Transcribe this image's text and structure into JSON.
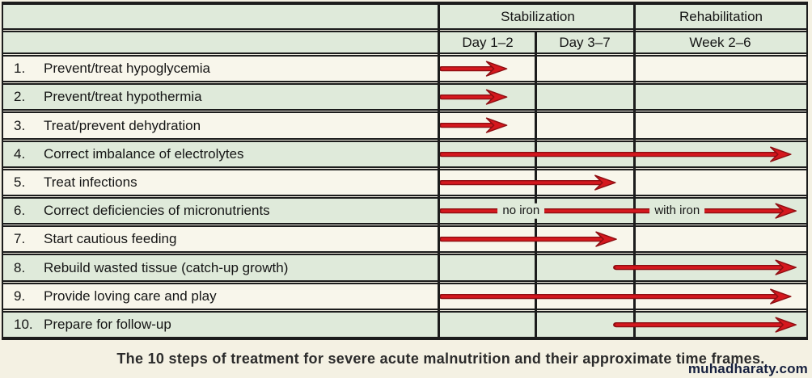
{
  "palette": {
    "row_cream": "#f8f6eb",
    "row_green": "#dfeada",
    "grid_black": "#1c1c1c",
    "arrow_bright": "#d5181e",
    "arrow_dark": "#8e0e12",
    "background": "#f4f1e3",
    "watermark_navy": "#16203f"
  },
  "table": {
    "header": {
      "stabilization": "Stabilization",
      "rehabilitation": "Rehabilitation",
      "day12": "Day 1–2",
      "day37": "Day 3–7",
      "week26": "Week 2–6"
    }
  },
  "caption": "The 10 steps of treatment for severe acute malnutrition and their approximate time frames.",
  "watermark": "muhadharaty.com",
  "chart_data": {
    "type": "table",
    "title": "The 10 steps of treatment for severe acute malnutrition and their approximate time frames.",
    "column_groups": [
      {
        "label": "Stabilization",
        "columns": [
          "Day 1–2",
          "Day 3–7"
        ]
      },
      {
        "label": "Rehabilitation",
        "columns": [
          "Week 2–6"
        ]
      }
    ],
    "columns": [
      "Day 1–2",
      "Day 3–7",
      "Week 2–6"
    ],
    "axis_note": "Arrow spans in column units: 0 = start of Day 1–2, 1 = start of Day 3–7, 2 = start of Week 2–6, 3 = end of Week 2–6",
    "rows": [
      {
        "num": "1.",
        "label": "Prevent/treat hypoglycemia",
        "arrow": {
          "start": 0,
          "end": 0.7
        }
      },
      {
        "num": "2.",
        "label": "Prevent/treat hypothermia",
        "arrow": {
          "start": 0,
          "end": 0.7
        }
      },
      {
        "num": "3.",
        "label": "Treat/prevent dehydration",
        "arrow": {
          "start": 0,
          "end": 0.7
        }
      },
      {
        "num": "4.",
        "label": "Correct imbalance of electrolytes",
        "arrow": {
          "start": 0,
          "end": 2.91
        }
      },
      {
        "num": "5.",
        "label": "Treat infections",
        "arrow": {
          "start": 0,
          "end": 1.81
        }
      },
      {
        "num": "6.",
        "label": "Correct deficiencies of micronutrients",
        "arrow": {
          "start": 0,
          "end": 2.94
        },
        "annotations": [
          {
            "text": "no iron",
            "at": 0.85
          },
          {
            "text": "with iron",
            "at": 2.25
          }
        ]
      },
      {
        "num": "7.",
        "label": "Start cautious feeding",
        "arrow": {
          "start": 0,
          "end": 1.82
        }
      },
      {
        "num": "8.",
        "label": "Rebuild wasted tissue (catch-up growth)",
        "arrow": {
          "start": 1.8,
          "end": 2.94
        }
      },
      {
        "num": "9.",
        "label": "Provide loving care and play",
        "arrow": {
          "start": 0,
          "end": 2.91
        }
      },
      {
        "num": "10.",
        "label": "Prepare for follow-up",
        "arrow": {
          "start": 1.8,
          "end": 2.94
        }
      }
    ]
  }
}
